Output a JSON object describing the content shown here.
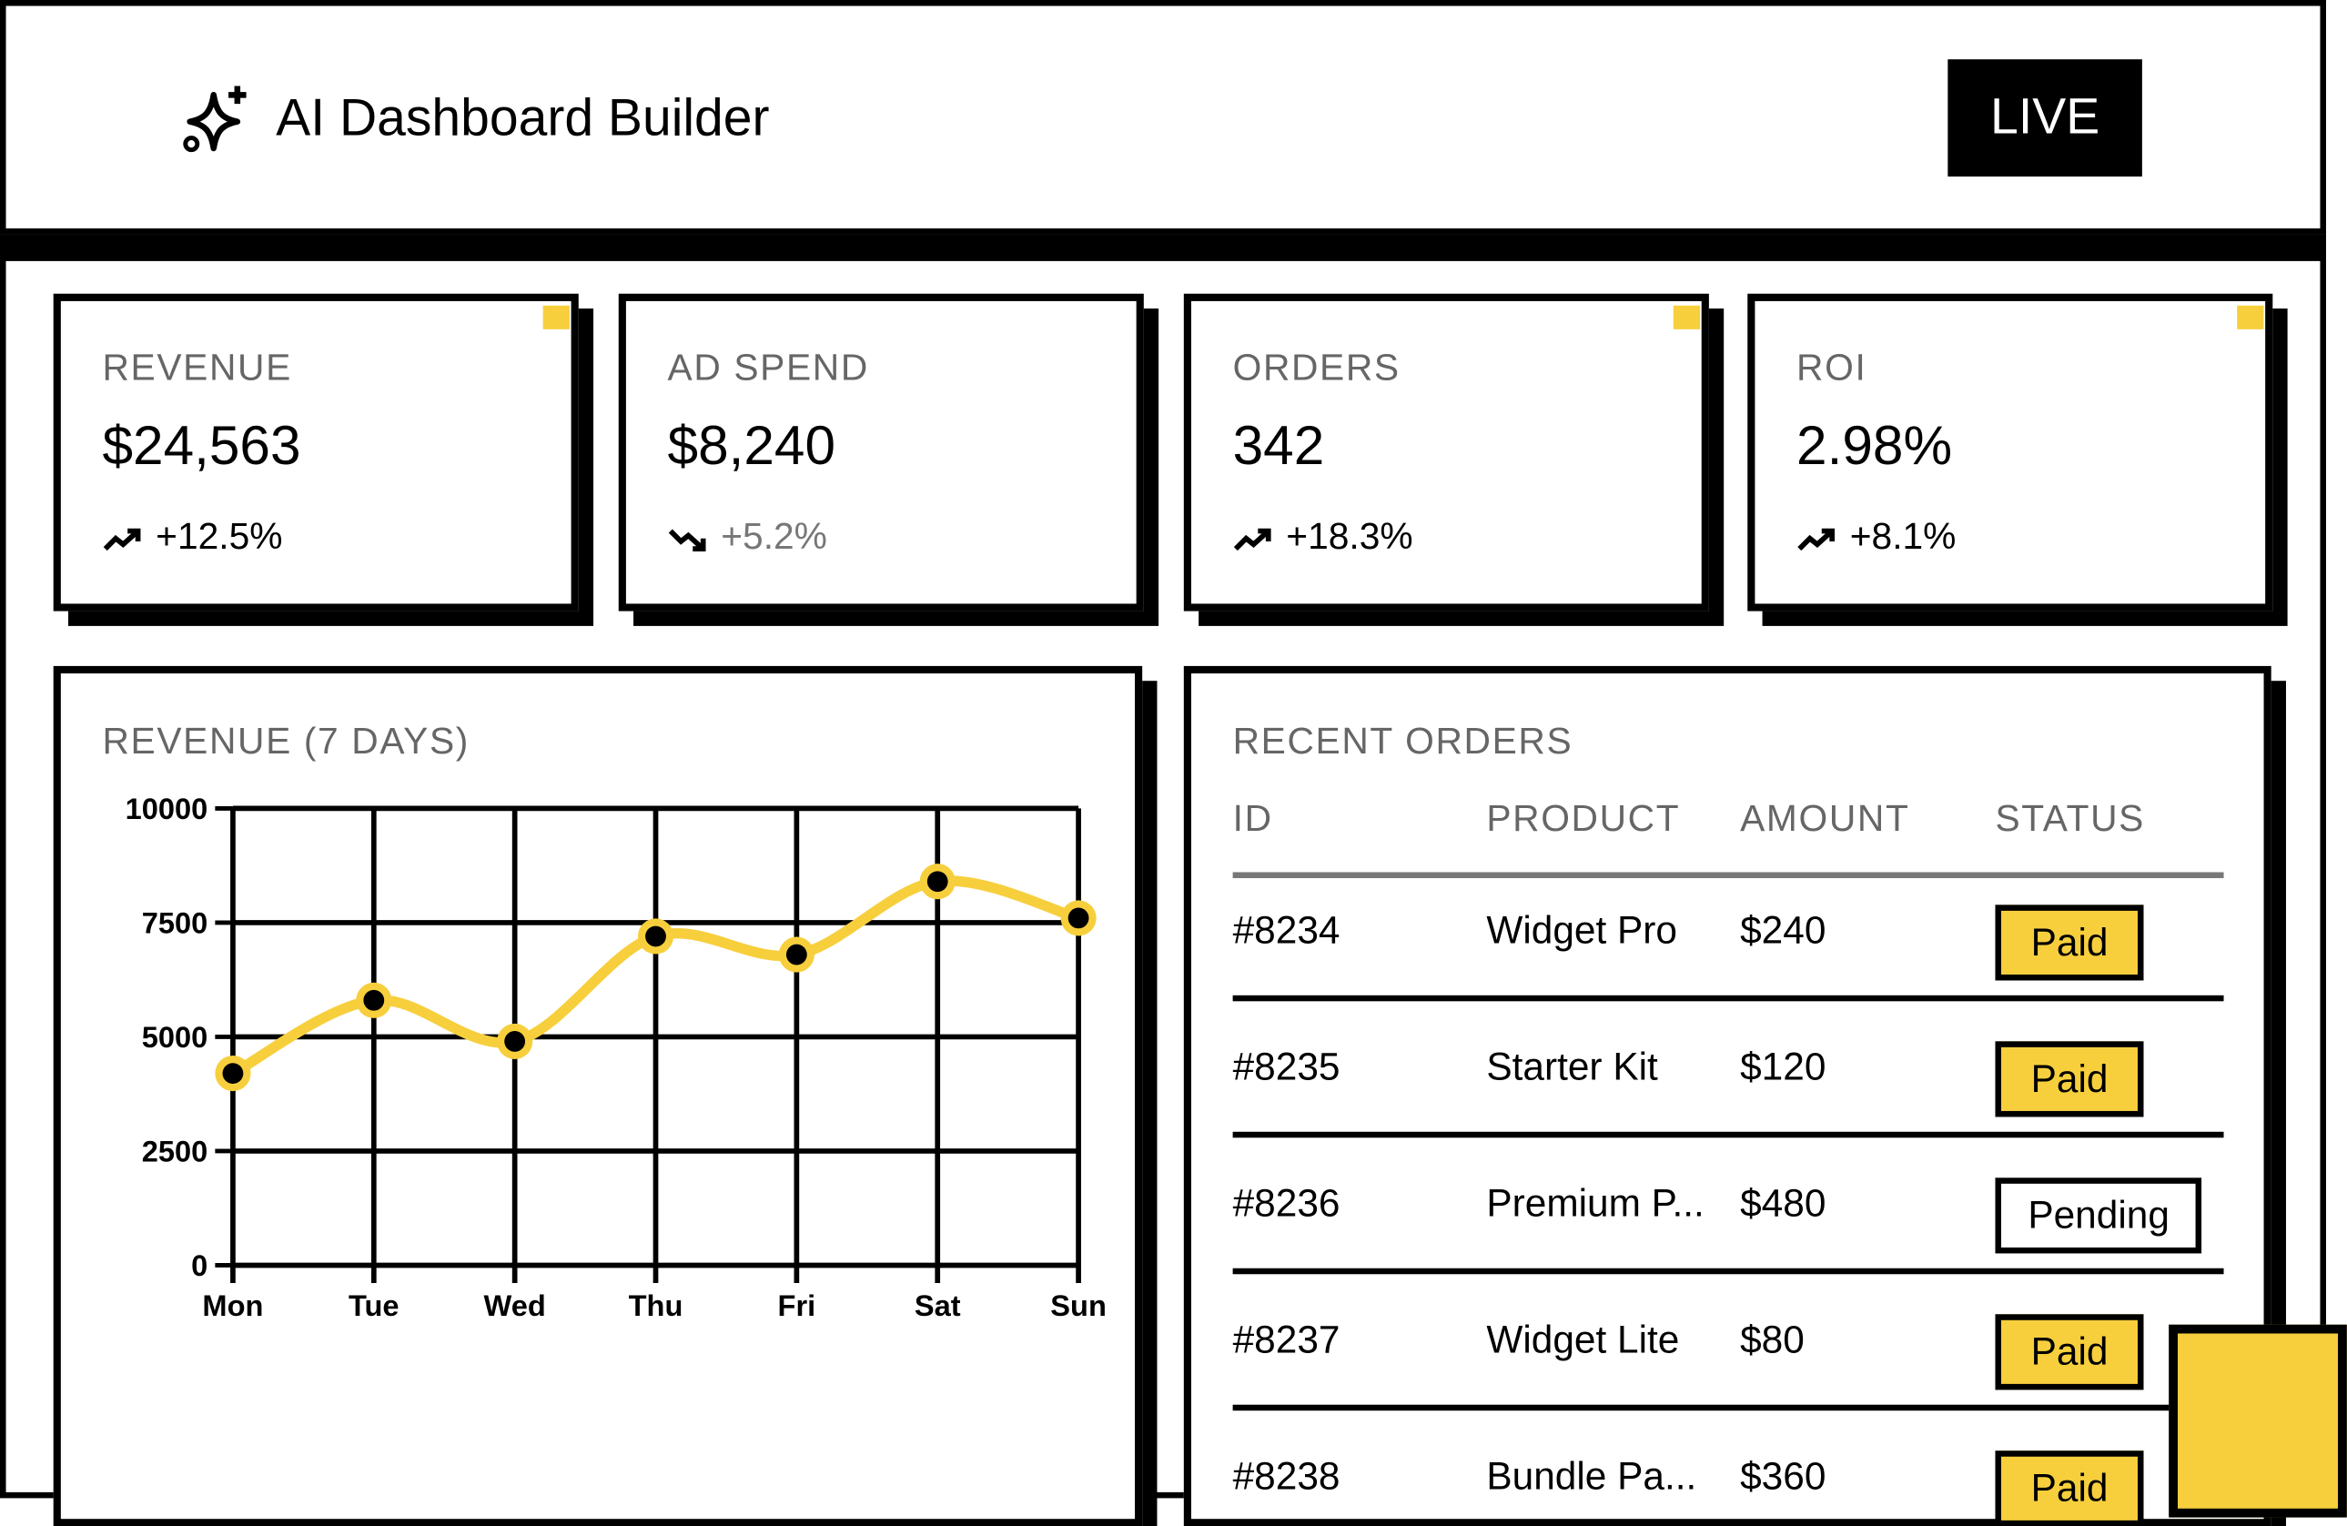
{
  "header": {
    "title": "AI Dashboard Builder",
    "badge": "LIVE"
  },
  "kpis": [
    {
      "label": "REVENUE",
      "value": "$24,563",
      "change": "+12.5%",
      "trend": "up",
      "accent": true
    },
    {
      "label": "AD SPEND",
      "value": "$8,240",
      "change": "+5.2%",
      "trend": "down",
      "accent": false
    },
    {
      "label": "ORDERS",
      "value": "342",
      "change": "+18.3%",
      "trend": "up",
      "accent": true
    },
    {
      "label": "ROI",
      "value": "2.98%",
      "change": "+8.1%",
      "trend": "up",
      "accent": true
    }
  ],
  "chart_data": {
    "type": "line",
    "title": "REVENUE (7 DAYS)",
    "categories": [
      "Mon",
      "Tue",
      "Wed",
      "Thu",
      "Fri",
      "Sat",
      "Sun"
    ],
    "values": [
      4200,
      5800,
      4900,
      7200,
      6800,
      8400,
      7600
    ],
    "color": "#f7cf3d",
    "ylim": [
      0,
      10000
    ],
    "yticks": [
      0,
      2500,
      5000,
      7500,
      10000
    ],
    "grid": true
  },
  "orders": {
    "title": "RECENT ORDERS",
    "columns": [
      "ID",
      "PRODUCT",
      "AMOUNT",
      "STATUS"
    ],
    "rows": [
      [
        "#8234",
        "Widget Pro",
        "$240",
        "Paid"
      ],
      [
        "#8235",
        "Starter Kit",
        "$120",
        "Paid"
      ],
      [
        "#8236",
        "Premium P...",
        "$480",
        "Pending"
      ],
      [
        "#8237",
        "Widget Lite",
        "$80",
        "Paid"
      ],
      [
        "#8238",
        "Bundle Pa...",
        "$360",
        "Paid"
      ]
    ]
  }
}
